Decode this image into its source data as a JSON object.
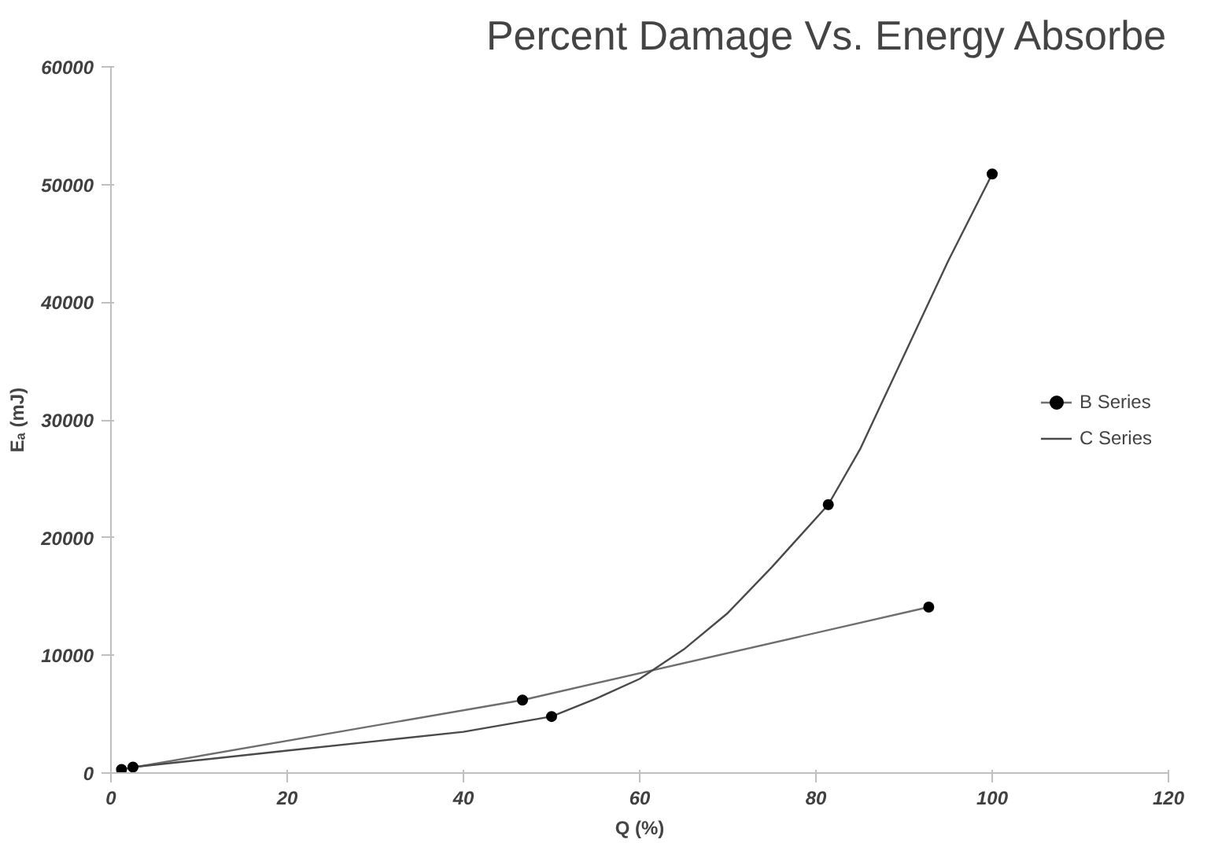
{
  "chart_data": {
    "type": "line",
    "title": "Percent Damage Vs. Energy Absorbe",
    "xlabel": "Q (%)",
    "ylabel": "Eₐ (mJ)",
    "xlim": [
      0,
      120
    ],
    "xticks": [
      0,
      20,
      40,
      60,
      80,
      100,
      120
    ],
    "ylim": [
      0,
      60000
    ],
    "yticks": [
      0,
      10000,
      20000,
      30000,
      40000,
      50000,
      60000
    ],
    "grid": false,
    "legend": "right",
    "marker": "circle",
    "series": [
      {
        "name": "B Series",
        "color": "#6e6e6e",
        "x": [
          1.2,
          46.7,
          92.8
        ],
        "values": [
          300,
          6200,
          14100
        ]
      },
      {
        "name": "C Series",
        "color": "#4a4a4a",
        "marker": "none",
        "x": [
          2.5,
          10,
          20,
          30,
          40,
          50,
          55,
          60,
          65,
          70,
          75,
          81.4,
          85,
          90,
          95,
          100
        ],
        "values": [
          500,
          1100,
          1900,
          2700,
          3500,
          4800,
          6300,
          8000,
          10500,
          13600,
          17500,
          22800,
          27500,
          35500,
          43500,
          50900
        ]
      },
      {
        "type": "scatter",
        "color": "#000000",
        "x": [
          2.5,
          50,
          81.4,
          100
        ],
        "values": [
          500,
          4800,
          22800,
          50900
        ]
      }
    ]
  }
}
